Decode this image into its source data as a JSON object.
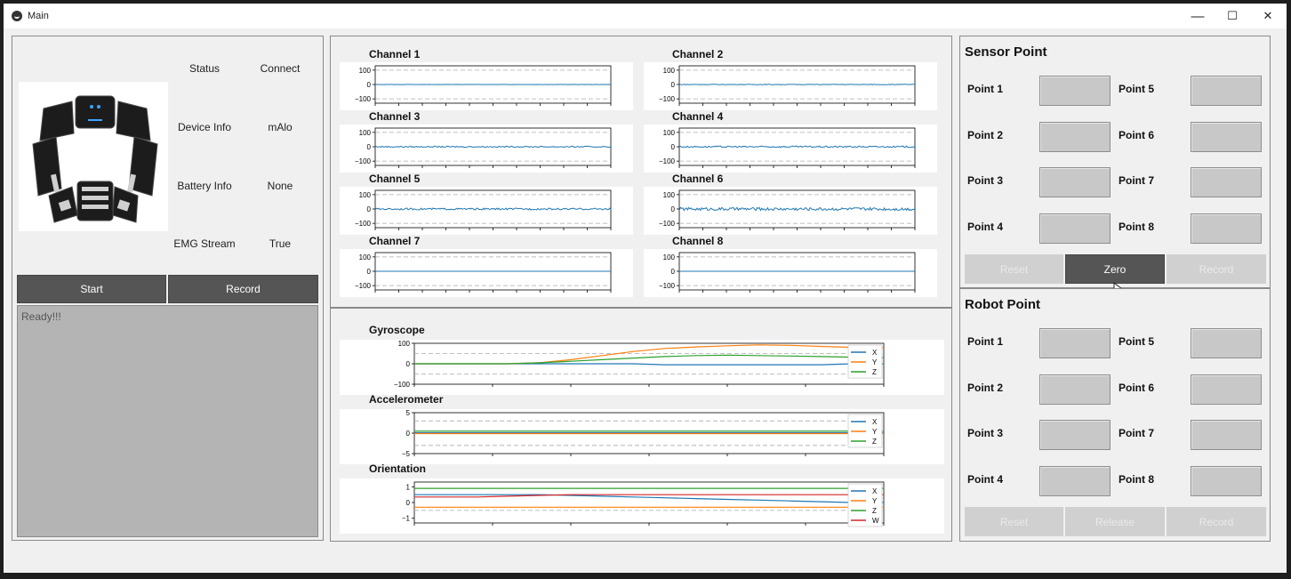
{
  "window": {
    "title": "Main",
    "minimize_glyph": "—",
    "maximize_glyph": "☐",
    "close_glyph": "✕"
  },
  "device": {
    "status_label": "Status",
    "status_value": "Connect",
    "device_info_label": "Device Info",
    "device_info_value": "mAlo",
    "battery_label": "Battery Info",
    "battery_value": "None",
    "emg_label": "EMG Stream",
    "emg_value": "True",
    "start_label": "Start",
    "record_label": "Record",
    "log_text": "Ready!!!"
  },
  "emg_charts": [
    {
      "title": "Channel 1",
      "ticks": [
        "100",
        "0",
        "−100"
      ],
      "noise": 0.2
    },
    {
      "title": "Channel 2",
      "ticks": [
        "100",
        "0",
        "−100"
      ],
      "noise": 0.5
    },
    {
      "title": "Channel 3",
      "ticks": [
        "100",
        "0",
        "−100"
      ],
      "noise": 1.0
    },
    {
      "title": "Channel 4",
      "ticks": [
        "100",
        "0",
        "−100"
      ],
      "noise": 1.3
    },
    {
      "title": "Channel 5",
      "ticks": [
        "100",
        "0",
        "−100"
      ],
      "noise": 1.5
    },
    {
      "title": "Channel 6",
      "ticks": [
        "100",
        "0",
        "−100"
      ],
      "noise": 2.6
    },
    {
      "title": "Channel 7",
      "ticks": [
        "100",
        "0",
        "−100"
      ],
      "noise": 0.0
    },
    {
      "title": "Channel 8",
      "ticks": [
        "100",
        "0",
        "−100"
      ],
      "noise": 0.0
    }
  ],
  "imu": {
    "gyroscope": {
      "title": "Gyroscope",
      "ticks": [
        "100",
        "0",
        "−100"
      ],
      "legend": [
        "X",
        "Y",
        "Z"
      ]
    },
    "accelerometer": {
      "title": "Accelerometer",
      "ticks": [
        "5",
        "0",
        "−5"
      ],
      "legend": [
        "X",
        "Y",
        "Z"
      ]
    },
    "orientation": {
      "title": "Orientation",
      "ticks": [
        "1",
        "0",
        "−1"
      ],
      "legend": [
        "X",
        "Y",
        "Z",
        "W"
      ]
    }
  },
  "colors": {
    "x": "#1f77b4",
    "y": "#ff7f0e",
    "z": "#2ca02c",
    "w": "#d62728"
  },
  "chart_data": [
    {
      "type": "line",
      "title": "Gyroscope",
      "ylim": [
        -100,
        100
      ],
      "legend_placement": "right",
      "series": [
        {
          "name": "X",
          "values": [
            0,
            0,
            0,
            0,
            0,
            0,
            0,
            0,
            -5,
            -5,
            -5,
            -5,
            -5,
            -5,
            0,
            0
          ]
        },
        {
          "name": "Y",
          "values": [
            0,
            0,
            0,
            0,
            5,
            20,
            40,
            60,
            75,
            82,
            88,
            92,
            90,
            85,
            80,
            80
          ]
        },
        {
          "name": "Z",
          "values": [
            0,
            0,
            0,
            0,
            5,
            12,
            20,
            28,
            35,
            40,
            42,
            40,
            38,
            35,
            32,
            30
          ]
        }
      ]
    },
    {
      "type": "line",
      "title": "Accelerometer",
      "ylim": [
        -5,
        5
      ],
      "legend_placement": "right",
      "series": [
        {
          "name": "X",
          "values": [
            0.1,
            0.1,
            0.1,
            0.1,
            0.1,
            0.1,
            0.1,
            0.1,
            0.1,
            0.1,
            0.1,
            0.1,
            0.1,
            0.1,
            0.1,
            0.1
          ]
        },
        {
          "name": "Y",
          "values": [
            -0.1,
            -0.1,
            -0.1,
            -0.1,
            -0.1,
            -0.1,
            -0.1,
            -0.1,
            -0.1,
            -0.1,
            -0.1,
            -0.1,
            -0.1,
            -0.1,
            -0.1,
            -0.1
          ]
        },
        {
          "name": "Z",
          "values": [
            0.5,
            0.5,
            0.5,
            0.5,
            0.5,
            0.5,
            0.5,
            0.5,
            0.5,
            0.5,
            0.5,
            0.5,
            0.5,
            0.5,
            0.5,
            0.5
          ]
        }
      ]
    },
    {
      "type": "line",
      "title": "Orientation",
      "ylim": [
        -1.3,
        1.3
      ],
      "legend_placement": "right",
      "series": [
        {
          "name": "X",
          "values": [
            0.5,
            0.5,
            0.5,
            0.5,
            0.5,
            0.45,
            0.4,
            0.35,
            0.3,
            0.25,
            0.2,
            0.15,
            0.1,
            0.05,
            0.0,
            0.0
          ]
        },
        {
          "name": "Y",
          "values": [
            -0.3,
            -0.3,
            -0.3,
            -0.3,
            -0.3,
            -0.3,
            -0.3,
            -0.3,
            -0.3,
            -0.3,
            -0.3,
            -0.3,
            -0.3,
            -0.3,
            -0.3,
            -0.3
          ]
        },
        {
          "name": "Z",
          "values": [
            0.9,
            0.9,
            0.9,
            0.9,
            0.9,
            0.9,
            0.9,
            0.9,
            0.9,
            0.9,
            0.9,
            0.9,
            0.9,
            0.9,
            0.9,
            0.9
          ]
        },
        {
          "name": "W",
          "values": [
            0.35,
            0.35,
            0.35,
            0.4,
            0.45,
            0.5,
            0.5,
            0.5,
            0.5,
            0.5,
            0.5,
            0.5,
            0.5,
            0.5,
            0.5,
            0.5
          ]
        }
      ]
    }
  ],
  "sensor_point": {
    "title": "Sensor Point",
    "points": [
      "Point 1",
      "Point 2",
      "Point 3",
      "Point 4",
      "Point 5",
      "Point 6",
      "Point 7",
      "Point 8"
    ],
    "reset_label": "Reset",
    "zero_label": "Zero",
    "record_label": "Record"
  },
  "robot_point": {
    "title": "Robot Point",
    "points": [
      "Point 1",
      "Point 2",
      "Point 3",
      "Point 4",
      "Point 5",
      "Point 6",
      "Point 7",
      "Point 8"
    ],
    "reset_label": "Reset",
    "release_label": "Release",
    "record_label": "Record"
  }
}
